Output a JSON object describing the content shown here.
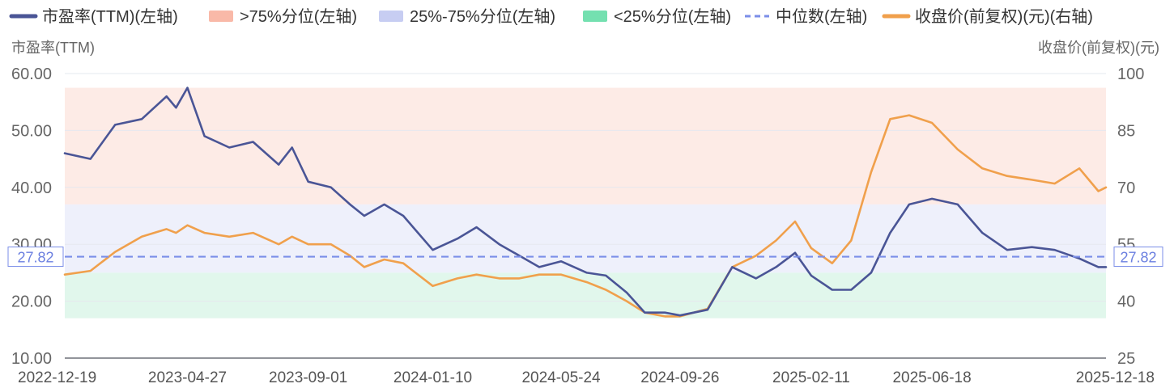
{
  "legend": [
    {
      "key": "pe",
      "label": "市盈率(TTM)(左轴)",
      "type": "line",
      "color": "#4a5596"
    },
    {
      "key": "above75",
      "label": ">75%分位(左轴)",
      "type": "band",
      "color": "#f9b9a8"
    },
    {
      "key": "mid",
      "label": "25%-75%分位(左轴)",
      "type": "band",
      "color": "#c7cdf2"
    },
    {
      "key": "below25",
      "label": "<25%分位(左轴)",
      "type": "band",
      "color": "#74e0b0"
    },
    {
      "key": "median",
      "label": "中位数(左轴)",
      "type": "dashed",
      "color": "#7b8ee8"
    },
    {
      "key": "price",
      "label": "收盘价(前复权)(元)(右轴)",
      "type": "line",
      "color": "#f0a04c"
    }
  ],
  "chart_data": {
    "type": "line",
    "left_axis": {
      "title": "市盈率(TTM)",
      "ticks": [
        "60.00",
        "50.00",
        "40.00",
        "30.00",
        "20.00",
        "10.00"
      ],
      "min": 10,
      "max": 60
    },
    "right_axis": {
      "title": "收盘价(前复权)(元)",
      "ticks": [
        "100",
        "85",
        "70",
        "55",
        "40",
        "25"
      ],
      "min": 25,
      "max": 100
    },
    "x_axis": {
      "start": "2022-12-19",
      "end": "2025-12-18",
      "tick_labels": [
        "2022-12-19",
        "2023-04-27",
        "2023-09-01",
        "2024-01-10",
        "2024-05-24",
        "2024-09-26",
        "2025-02-11",
        "2025-06-18",
        "2025-12-18"
      ]
    },
    "median": {
      "value": 27.82,
      "label": "27.82"
    },
    "bands": {
      "above75": {
        "from": 37.0,
        "to": 57.5
      },
      "mid": {
        "from": 25.0,
        "to": 37.0
      },
      "below25": {
        "from": 17.0,
        "to": 25.0
      }
    },
    "series": [
      {
        "name": "市盈率(TTM)(左轴)",
        "axis": "left",
        "x": [
          "2022-12-19",
          "2023-01-15",
          "2023-02-10",
          "2023-03-10",
          "2023-04-05",
          "2023-04-15",
          "2023-04-27",
          "2023-05-15",
          "2023-06-10",
          "2023-07-05",
          "2023-08-01",
          "2023-08-15",
          "2023-09-01",
          "2023-09-25",
          "2023-10-15",
          "2023-10-30",
          "2023-11-20",
          "2023-12-10",
          "2024-01-10",
          "2024-02-05",
          "2024-02-25",
          "2024-03-20",
          "2024-04-10",
          "2024-05-01",
          "2024-05-24",
          "2024-06-20",
          "2024-07-10",
          "2024-08-01",
          "2024-08-20",
          "2024-09-10",
          "2024-09-26",
          "2024-10-25",
          "2024-11-20",
          "2024-12-15",
          "2025-01-05",
          "2025-01-25",
          "2025-02-11",
          "2025-03-05",
          "2025-03-25",
          "2025-04-15",
          "2025-05-05",
          "2025-05-25",
          "2025-06-18",
          "2025-07-15",
          "2025-08-10",
          "2025-09-05",
          "2025-10-01",
          "2025-10-25",
          "2025-11-20",
          "2025-12-10",
          "2025-12-18"
        ],
        "y": [
          46.0,
          45.0,
          51.0,
          52.0,
          56.0,
          54.0,
          57.5,
          49.0,
          47.0,
          48.0,
          44.0,
          47.0,
          41.0,
          40.0,
          37.0,
          35.0,
          37.0,
          35.0,
          29.0,
          31.0,
          33.0,
          30.0,
          28.0,
          26.0,
          27.0,
          25.0,
          24.5,
          21.5,
          18.0,
          18.0,
          17.5,
          18.5,
          26.0,
          24.0,
          26.0,
          28.5,
          24.5,
          22.0,
          22.0,
          25.0,
          32.0,
          37.0,
          38.0,
          37.0,
          32.0,
          29.0,
          29.5,
          29.0,
          27.5,
          26.0,
          26.0
        ]
      },
      {
        "name": "收盘价(前复权)(元)(右轴)",
        "axis": "right",
        "x": [
          "2022-12-19",
          "2023-01-15",
          "2023-02-10",
          "2023-03-10",
          "2023-04-05",
          "2023-04-15",
          "2023-04-27",
          "2023-05-15",
          "2023-06-10",
          "2023-07-05",
          "2023-08-01",
          "2023-08-15",
          "2023-09-01",
          "2023-09-25",
          "2023-10-15",
          "2023-10-30",
          "2023-11-20",
          "2023-12-10",
          "2024-01-10",
          "2024-02-05",
          "2024-02-25",
          "2024-03-20",
          "2024-04-10",
          "2024-05-01",
          "2024-05-24",
          "2024-06-20",
          "2024-07-10",
          "2024-08-01",
          "2024-08-20",
          "2024-09-10",
          "2024-09-26",
          "2024-10-25",
          "2024-11-20",
          "2024-12-15",
          "2025-01-05",
          "2025-01-25",
          "2025-02-11",
          "2025-03-05",
          "2025-03-25",
          "2025-04-15",
          "2025-05-05",
          "2025-05-25",
          "2025-06-18",
          "2025-07-15",
          "2025-08-10",
          "2025-09-05",
          "2025-10-01",
          "2025-10-25",
          "2025-11-20",
          "2025-12-10",
          "2025-12-18"
        ],
        "y": [
          47.0,
          48.0,
          53.0,
          57.0,
          59.0,
          58.0,
          60.0,
          58.0,
          57.0,
          58.0,
          55.0,
          57.0,
          55.0,
          55.0,
          52.0,
          49.0,
          51.0,
          50.0,
          44.0,
          46.0,
          47.0,
          46.0,
          46.0,
          47.0,
          47.0,
          45.0,
          43.0,
          40.0,
          37.0,
          36.0,
          36.0,
          38.0,
          49.0,
          52.0,
          56.0,
          61.0,
          54.0,
          50.0,
          56.0,
          74.0,
          88.0,
          89.0,
          87.0,
          80.0,
          75.0,
          73.0,
          72.0,
          71.0,
          75.0,
          69.0,
          70.0
        ]
      }
    ]
  }
}
